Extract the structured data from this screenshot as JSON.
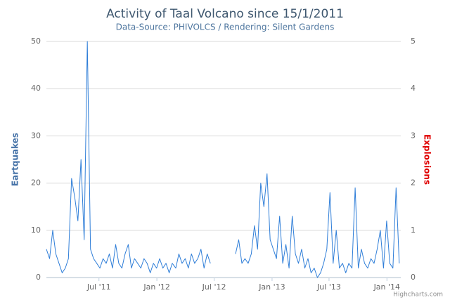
{
  "chart_data": {
    "type": "line",
    "title": "Activity of Taal Volcano since 15/1/2011",
    "subtitle": "Data-Source: PHIVOLCS / Rendering: Silent Gardens",
    "y_axis_label": "Eartquakes",
    "y2_axis_label": "Explosions",
    "credits": "Highcharts.com",
    "grid": true,
    "xlim": [
      "2011-01-15",
      "2014-02-14"
    ],
    "xticks": [
      {
        "value": "2011-07-01",
        "label": "Jul '11"
      },
      {
        "value": "2012-01-01",
        "label": "Jan '12"
      },
      {
        "value": "2012-07-01",
        "label": "Jul '12"
      },
      {
        "value": "2013-01-01",
        "label": "Jan '13"
      },
      {
        "value": "2013-07-01",
        "label": "Jul '13"
      },
      {
        "value": "2014-01-01",
        "label": "Jan '14"
      }
    ],
    "ylim": [
      0,
      50
    ],
    "yticks": [
      0,
      10,
      20,
      30,
      40,
      50
    ],
    "y2lim": [
      0,
      5
    ],
    "y2ticks": [
      0,
      1,
      2,
      3,
      4,
      5
    ],
    "x": [
      "2011-01-15",
      "2011-01-25",
      "2011-02-04",
      "2011-02-14",
      "2011-02-24",
      "2011-03-06",
      "2011-03-16",
      "2011-03-26",
      "2011-04-05",
      "2011-04-15",
      "2011-04-25",
      "2011-05-05",
      "2011-05-15",
      "2011-05-25",
      "2011-06-04",
      "2011-06-14",
      "2011-06-24",
      "2011-07-04",
      "2011-07-14",
      "2011-07-24",
      "2011-08-03",
      "2011-08-13",
      "2011-08-23",
      "2011-09-02",
      "2011-09-12",
      "2011-09-22",
      "2011-10-02",
      "2011-10-12",
      "2011-10-22",
      "2011-11-01",
      "2011-11-11",
      "2011-11-21",
      "2011-12-01",
      "2011-12-11",
      "2011-12-21",
      "2011-12-31",
      "2012-01-10",
      "2012-01-20",
      "2012-01-30",
      "2012-02-09",
      "2012-02-19",
      "2012-03-01",
      "2012-03-11",
      "2012-03-21",
      "2012-03-31",
      "2012-04-10",
      "2012-04-20",
      "2012-04-30",
      "2012-05-10",
      "2012-05-20",
      "2012-05-30",
      "2012-06-09",
      "2012-06-19",
      "2012-06-29",
      "2012-07-09",
      "2012-07-19",
      "2012-07-29",
      "2012-08-08",
      "2012-08-18",
      "2012-08-28",
      "2012-09-07",
      "2012-09-17",
      "2012-09-27",
      "2012-10-07",
      "2012-10-17",
      "2012-10-27",
      "2012-11-06",
      "2012-11-16",
      "2012-11-26",
      "2012-12-06",
      "2012-12-16",
      "2012-12-26",
      "2013-01-05",
      "2013-01-15",
      "2013-01-25",
      "2013-02-04",
      "2013-02-14",
      "2013-02-24",
      "2013-03-06",
      "2013-03-16",
      "2013-03-26",
      "2013-04-05",
      "2013-04-15",
      "2013-04-25",
      "2013-05-05",
      "2013-05-15",
      "2013-05-25",
      "2013-06-04",
      "2013-06-14",
      "2013-06-24",
      "2013-07-04",
      "2013-07-14",
      "2013-07-24",
      "2013-08-03",
      "2013-08-13",
      "2013-08-23",
      "2013-09-02",
      "2013-09-12",
      "2013-09-22",
      "2013-10-02",
      "2013-10-12",
      "2013-10-22",
      "2013-11-01",
      "2013-11-11",
      "2013-11-21",
      "2013-12-01",
      "2013-12-11",
      "2013-12-21",
      "2013-12-31",
      "2014-01-10",
      "2014-01-20",
      "2014-01-30",
      "2014-02-09"
    ],
    "series": [
      {
        "name": "Eartquakes",
        "color": "#2f7ed8",
        "values": [
          6,
          4,
          10,
          5,
          3,
          1,
          2,
          4,
          21,
          17,
          12,
          25,
          8,
          50,
          6,
          4,
          3,
          2,
          4,
          3,
          5,
          2,
          7,
          3,
          2,
          5,
          7,
          2,
          4,
          3,
          2,
          4,
          3,
          1,
          3,
          2,
          4,
          2,
          3,
          1,
          3,
          2,
          5,
          3,
          4,
          2,
          5,
          3,
          4,
          6,
          2,
          5,
          3,
          null,
          null,
          null,
          null,
          null,
          null,
          null,
          5,
          8,
          3,
          4,
          3,
          5,
          11,
          6,
          20,
          15,
          22,
          8,
          6,
          4,
          13,
          3,
          7,
          2,
          13,
          5,
          3,
          6,
          2,
          4,
          1,
          2,
          0,
          1,
          3,
          6,
          18,
          3,
          10,
          2,
          3,
          1,
          3,
          2,
          19,
          2,
          6,
          3,
          2,
          4,
          3,
          6,
          10,
          2,
          12,
          3,
          2,
          19,
          3
        ]
      }
    ]
  }
}
